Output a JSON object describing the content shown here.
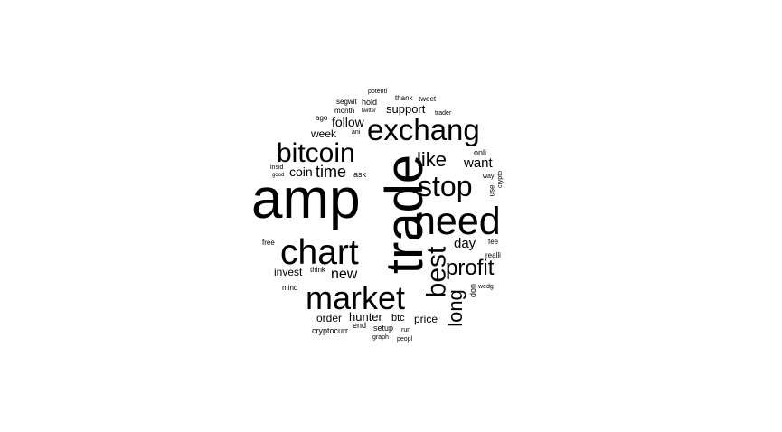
{
  "text_color": "#000000",
  "background": "#ffffff",
  "words": {
    "trade": "trade",
    "amp": "amp",
    "need": "need",
    "chart": "chart",
    "market": "market",
    "exchang": "exchang",
    "bitcoin": "bitcoin",
    "stop": "stop",
    "best": "best",
    "profit": "profit",
    "long": "long",
    "like": "like",
    "time": "time",
    "want": "want",
    "day": "day",
    "new": "new",
    "coin": "coin",
    "follow": "follow",
    "support": "support",
    "week": "week",
    "invest": "invest",
    "order": "order",
    "hunter": "hunter",
    "btc": "btc",
    "price": "price",
    "setup": "setup",
    "end": "end",
    "cryptocurr": "cryptocurr",
    "ask": "ask",
    "onli": "onli",
    "fee": "fee",
    "realli": "realli",
    "don": "don",
    "use": "use",
    "crypto": "crypto",
    "way": "way",
    "free": "free",
    "think": "think",
    "mind": "mind",
    "wedg": "wedg",
    "run": "run",
    "graph": "graph",
    "peopl": "peopl",
    "insid": "insid",
    "good": "good",
    "ago": "ago",
    "ani": "ani",
    "month": "month",
    "segwit": "segwit",
    "hold": "hold",
    "twitter": "twitter",
    "potenti": "potenti",
    "thank": "thank",
    "tweet": "tweet",
    "trader": "trader"
  }
}
